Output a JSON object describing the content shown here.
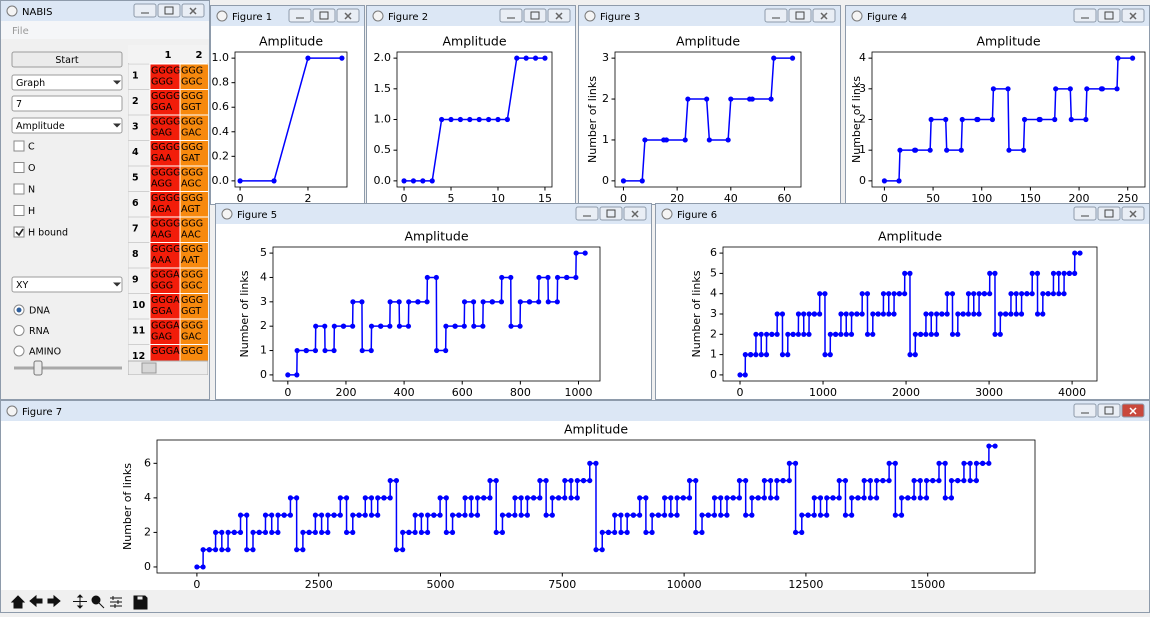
{
  "app": {
    "title": "NABIS",
    "menu": [
      "File"
    ],
    "start": "Start",
    "mode": "Graph",
    "number": "7",
    "measure": "Amplitude",
    "checkboxes": [
      {
        "label": "C",
        "checked": false
      },
      {
        "label": "O",
        "checked": false
      },
      {
        "label": "N",
        "checked": false
      },
      {
        "label": "H",
        "checked": false
      },
      {
        "label": "H bound",
        "checked": true
      }
    ],
    "plot": "XY",
    "radios": [
      {
        "label": "DNA",
        "selected": true
      },
      {
        "label": "RNA",
        "selected": false
      },
      {
        "label": "AMINO",
        "selected": false
      }
    ],
    "table": {
      "columns": [
        "1",
        "2"
      ],
      "rows": [
        {
          "label": "1",
          "cells": [
            [
              "GGGG",
              "GGG"
            ],
            [
              "GGG",
              "GGC"
            ]
          ]
        },
        {
          "label": "2",
          "cells": [
            [
              "GGGG",
              "GGA"
            ],
            [
              "GGG",
              "GGT"
            ]
          ]
        },
        {
          "label": "3",
          "cells": [
            [
              "GGGG",
              "GAG"
            ],
            [
              "GGG",
              "GAC"
            ]
          ]
        },
        {
          "label": "4",
          "cells": [
            [
              "GGGG",
              "GAA"
            ],
            [
              "GGG",
              "GAT"
            ]
          ]
        },
        {
          "label": "5",
          "cells": [
            [
              "GGGG",
              "AGG"
            ],
            [
              "GGG",
              "AGC"
            ]
          ]
        },
        {
          "label": "6",
          "cells": [
            [
              "GGGG",
              "AGA"
            ],
            [
              "GGG",
              "AGT"
            ]
          ]
        },
        {
          "label": "7",
          "cells": [
            [
              "GGGG",
              "AAG"
            ],
            [
              "GGG",
              "AAC"
            ]
          ]
        },
        {
          "label": "8",
          "cells": [
            [
              "GGGG",
              "AAA"
            ],
            [
              "GGG",
              "AAT"
            ]
          ]
        },
        {
          "label": "9",
          "cells": [
            [
              "GGGA",
              "GGG"
            ],
            [
              "GGG",
              "GGC"
            ]
          ]
        },
        {
          "label": "10",
          "cells": [
            [
              "GGGA",
              "GGA"
            ],
            [
              "GGG",
              "GGT"
            ]
          ]
        },
        {
          "label": "11",
          "cells": [
            [
              "GGGA",
              "GAG"
            ],
            [
              "GGG",
              "GAC"
            ]
          ]
        },
        {
          "label": "12",
          "cells": [
            [
              "GGGA"
            ],
            [
              "GGG"
            ]
          ]
        }
      ]
    }
  },
  "chart_data": [
    {
      "window": "Figure 1",
      "type": "line",
      "title": "Amplitude",
      "color": "#0000ff",
      "x": [
        0,
        1,
        2,
        3
      ],
      "values": [
        0,
        0,
        1,
        1
      ],
      "xlim": [
        -0.15,
        3.15
      ],
      "ylim": [
        -0.05,
        1.05
      ],
      "xticks": [
        0,
        2
      ],
      "yticks": [
        {
          "value": 0,
          "label": "0.0"
        },
        0.2,
        0.4,
        0.6,
        0.8,
        {
          "value": 1,
          "label": "1.0"
        }
      ]
    },
    {
      "window": "Figure 2",
      "type": "line",
      "title": "Amplitude",
      "color": "#0000ff",
      "x": [
        0,
        1,
        2,
        3,
        4,
        5,
        6,
        7,
        8,
        9,
        10,
        11,
        12,
        13,
        14,
        15
      ],
      "values": [
        0,
        0,
        0,
        0,
        1,
        1,
        1,
        1,
        1,
        1,
        1,
        1,
        2,
        2,
        2,
        2
      ],
      "xlim": [
        -0.75,
        15.75
      ],
      "ylim": [
        -0.1,
        2.1
      ],
      "xticks": [
        0,
        5,
        10,
        15
      ],
      "yticks": [
        {
          "value": 0,
          "label": "0.0"
        },
        0.5,
        {
          "value": 1,
          "label": "1.0"
        },
        1.5,
        {
          "value": 2,
          "label": "2.0"
        }
      ]
    },
    {
      "window": "Figure 3",
      "type": "line",
      "title": "Amplitude",
      "ylabel": "Number of links",
      "color": "#0000ff",
      "x": [
        0,
        7,
        8,
        15,
        16,
        23,
        24,
        31,
        32,
        39,
        40,
        47,
        48,
        55,
        56,
        63
      ],
      "values": [
        0,
        0,
        1,
        1,
        1,
        1,
        2,
        2,
        1,
        1,
        2,
        2,
        2,
        2,
        3,
        3
      ],
      "xlim": [
        -3.15,
        66.15
      ],
      "ylim": [
        -0.15,
        3.15
      ],
      "xticks": [
        0,
        20,
        40,
        60
      ],
      "yticks": [
        0,
        1,
        2,
        3
      ]
    },
    {
      "window": "Figure 4",
      "type": "line",
      "title": "Amplitude",
      "ylabel": "Number of links",
      "color": "#0000ff",
      "x": [
        0,
        15,
        16,
        31,
        32,
        47,
        48,
        63,
        64,
        79,
        80,
        95,
        96,
        111,
        112,
        127,
        128,
        143,
        144,
        159,
        160,
        175,
        176,
        191,
        192,
        207,
        208,
        223,
        224,
        239,
        240,
        255
      ],
      "values": [
        0,
        0,
        1,
        1,
        1,
        1,
        2,
        2,
        1,
        1,
        2,
        2,
        2,
        2,
        3,
        3,
        1,
        1,
        2,
        2,
        2,
        2,
        3,
        3,
        2,
        2,
        3,
        3,
        3,
        3,
        4,
        4
      ],
      "xlim": [
        -12.75,
        267.75
      ],
      "ylim": [
        -0.2,
        4.2
      ],
      "xticks": [
        0,
        50,
        100,
        150,
        200,
        250
      ],
      "yticks": [
        0,
        1,
        2,
        3,
        4
      ]
    },
    {
      "window": "Figure 5",
      "type": "line",
      "title": "Amplitude",
      "ylabel": "Number of links",
      "color": "#0000ff",
      "x": [
        0,
        31,
        32,
        63,
        64,
        95,
        96,
        127,
        128,
        159,
        160,
        191,
        192,
        223,
        224,
        255,
        256,
        287,
        288,
        319,
        320,
        351,
        352,
        383,
        384,
        415,
        416,
        447,
        448,
        479,
        480,
        511,
        512,
        543,
        544,
        575,
        576,
        607,
        608,
        639,
        640,
        671,
        672,
        703,
        704,
        735,
        736,
        767,
        768,
        799,
        800,
        831,
        832,
        863,
        864,
        895,
        896,
        927,
        928,
        959,
        960,
        991,
        992,
        1023
      ],
      "values": [
        0,
        0,
        1,
        1,
        1,
        1,
        2,
        2,
        1,
        1,
        2,
        2,
        2,
        2,
        3,
        3,
        1,
        1,
        2,
        2,
        2,
        2,
        3,
        3,
        2,
        2,
        3,
        3,
        3,
        3,
        4,
        4,
        1,
        1,
        2,
        2,
        2,
        2,
        3,
        3,
        2,
        2,
        3,
        3,
        3,
        3,
        4,
        4,
        2,
        2,
        3,
        3,
        3,
        3,
        4,
        4,
        3,
        3,
        4,
        4,
        4,
        4,
        5,
        5
      ],
      "xlim": [
        -51,
        1074
      ],
      "ylim": [
        -0.25,
        5.25
      ],
      "xticks": [
        0,
        200,
        400,
        600,
        800,
        1000
      ],
      "yticks": [
        0,
        1,
        2,
        3,
        4,
        5
      ]
    },
    {
      "window": "Figure 6",
      "type": "line",
      "title": "Amplitude",
      "ylabel": "Number of links",
      "color": "#0000ff",
      "x": [
        0,
        63,
        64,
        127,
        128,
        191,
        192,
        255,
        256,
        319,
        320,
        383,
        384,
        447,
        448,
        511,
        512,
        575,
        576,
        639,
        640,
        703,
        704,
        767,
        768,
        831,
        832,
        895,
        896,
        959,
        960,
        1023,
        1024,
        1087,
        1088,
        1151,
        1152,
        1215,
        1216,
        1279,
        1280,
        1343,
        1344,
        1407,
        1408,
        1471,
        1472,
        1535,
        1536,
        1599,
        1600,
        1663,
        1664,
        1727,
        1728,
        1791,
        1792,
        1855,
        1856,
        1919,
        1920,
        1983,
        1984,
        2047,
        2048,
        2111,
        2112,
        2175,
        2176,
        2239,
        2240,
        2303,
        2304,
        2367,
        2368,
        2431,
        2432,
        2495,
        2496,
        2559,
        2560,
        2623,
        2624,
        2687,
        2688,
        2751,
        2752,
        2815,
        2816,
        2879,
        2880,
        2943,
        2944,
        3007,
        3008,
        3071,
        3072,
        3135,
        3136,
        3199,
        3200,
        3263,
        3264,
        3327,
        3328,
        3391,
        3392,
        3455,
        3456,
        3519,
        3520,
        3583,
        3584,
        3647,
        3648,
        3711,
        3712,
        3775,
        3776,
        3839,
        3840,
        3903,
        3904,
        3967,
        3968,
        4031,
        4032,
        4095
      ],
      "values": [
        0,
        0,
        1,
        1,
        1,
        1,
        2,
        2,
        1,
        1,
        2,
        2,
        2,
        2,
        3,
        3,
        1,
        1,
        2,
        2,
        2,
        2,
        3,
        3,
        2,
        2,
        3,
        3,
        3,
        3,
        4,
        4,
        1,
        1,
        2,
        2,
        2,
        2,
        3,
        3,
        2,
        2,
        3,
        3,
        3,
        3,
        4,
        4,
        2,
        2,
        3,
        3,
        3,
        3,
        4,
        4,
        3,
        3,
        4,
        4,
        4,
        4,
        5,
        5,
        1,
        1,
        2,
        2,
        2,
        2,
        3,
        3,
        2,
        2,
        3,
        3,
        3,
        3,
        4,
        4,
        2,
        2,
        3,
        3,
        3,
        3,
        4,
        4,
        3,
        3,
        4,
        4,
        4,
        4,
        5,
        5,
        2,
        2,
        3,
        3,
        3,
        3,
        4,
        4,
        3,
        3,
        4,
        4,
        4,
        4,
        5,
        5,
        3,
        3,
        4,
        4,
        4,
        4,
        5,
        5,
        4,
        4,
        5,
        5,
        5,
        5,
        6,
        6
      ],
      "xlim": [
        -205,
        4300
      ],
      "ylim": [
        -0.3,
        6.3
      ],
      "xticks": [
        0,
        1000,
        2000,
        3000,
        4000
      ],
      "yticks": [
        0,
        1,
        2,
        3,
        4,
        5,
        6
      ]
    },
    {
      "window": "Figure 7",
      "type": "line",
      "title": "Amplitude",
      "ylabel": "Number of links",
      "color": "#0000ff",
      "x": [
        0,
        127,
        128,
        255,
        256,
        383,
        384,
        511,
        512,
        639,
        640,
        767,
        768,
        895,
        896,
        1023,
        1024,
        1151,
        1152,
        1279,
        1280,
        1407,
        1408,
        1535,
        1536,
        1663,
        1664,
        1791,
        1792,
        1919,
        1920,
        2047,
        2048,
        2175,
        2176,
        2303,
        2304,
        2431,
        2432,
        2559,
        2560,
        2687,
        2688,
        2815,
        2816,
        2943,
        2944,
        3071,
        3072,
        3199,
        3200,
        3327,
        3328,
        3455,
        3456,
        3583,
        3584,
        3711,
        3712,
        3839,
        3840,
        3967,
        3968,
        4095,
        4096,
        4223,
        4224,
        4351,
        4352,
        4479,
        4480,
        4607,
        4608,
        4735,
        4736,
        4863,
        4864,
        4991,
        4992,
        5119,
        5120,
        5247,
        5248,
        5375,
        5376,
        5503,
        5504,
        5631,
        5632,
        5759,
        5760,
        5887,
        5888,
        6015,
        6016,
        6143,
        6144,
        6271,
        6272,
        6399,
        6400,
        6527,
        6528,
        6655,
        6656,
        6783,
        6784,
        6911,
        6912,
        7039,
        7040,
        7167,
        7168,
        7295,
        7296,
        7423,
        7424,
        7551,
        7552,
        7679,
        7680,
        7807,
        7808,
        7935,
        7936,
        8063,
        8064,
        8191,
        8192,
        8319,
        8320,
        8447,
        8448,
        8575,
        8576,
        8703,
        8704,
        8831,
        8832,
        8959,
        8960,
        9087,
        9088,
        9215,
        9216,
        9343,
        9344,
        9471,
        9472,
        9599,
        9600,
        9727,
        9728,
        9855,
        9856,
        9983,
        9984,
        10111,
        10112,
        10239,
        10240,
        10367,
        10368,
        10495,
        10496,
        10623,
        10624,
        10751,
        10752,
        10879,
        10880,
        11007,
        11008,
        11135,
        11136,
        11263,
        11264,
        11391,
        11392,
        11519,
        11520,
        11647,
        11648,
        11775,
        11776,
        11903,
        11904,
        12031,
        12032,
        12159,
        12160,
        12287,
        12288,
        12415,
        12416,
        12543,
        12544,
        12671,
        12672,
        12799,
        12800,
        12927,
        12928,
        13055,
        13056,
        13183,
        13184,
        13311,
        13312,
        13439,
        13440,
        13567,
        13568,
        13695,
        13696,
        13823,
        13824,
        13951,
        13952,
        14079,
        14080,
        14207,
        14208,
        14335,
        14336,
        14463,
        14464,
        14591,
        14592,
        14719,
        14720,
        14847,
        14848,
        14975,
        14976,
        15103,
        15104,
        15231,
        15232,
        15359,
        15360,
        15487,
        15488,
        15615,
        15616,
        15743,
        15744,
        15871,
        15872,
        15999,
        16000,
        16127,
        16128,
        16255,
        16256,
        16383
      ],
      "values": [
        0,
        0,
        1,
        1,
        1,
        1,
        2,
        2,
        1,
        1,
        2,
        2,
        2,
        2,
        3,
        3,
        1,
        1,
        2,
        2,
        2,
        2,
        3,
        3,
        2,
        2,
        3,
        3,
        3,
        3,
        4,
        4,
        1,
        1,
        2,
        2,
        2,
        2,
        3,
        3,
        2,
        2,
        3,
        3,
        3,
        3,
        4,
        4,
        2,
        2,
        3,
        3,
        3,
        3,
        4,
        4,
        3,
        3,
        4,
        4,
        4,
        4,
        5,
        5,
        1,
        1,
        2,
        2,
        2,
        2,
        3,
        3,
        2,
        2,
        3,
        3,
        3,
        3,
        4,
        4,
        2,
        2,
        3,
        3,
        3,
        3,
        4,
        4,
        3,
        3,
        4,
        4,
        4,
        4,
        5,
        5,
        2,
        2,
        3,
        3,
        3,
        3,
        4,
        4,
        3,
        3,
        4,
        4,
        4,
        4,
        5,
        5,
        3,
        3,
        4,
        4,
        4,
        4,
        5,
        5,
        4,
        4,
        5,
        5,
        5,
        5,
        6,
        6,
        1,
        1,
        2,
        2,
        2,
        2,
        3,
        3,
        2,
        2,
        3,
        3,
        3,
        3,
        4,
        4,
        2,
        2,
        3,
        3,
        3,
        3,
        4,
        4,
        3,
        3,
        4,
        4,
        4,
        4,
        5,
        5,
        2,
        2,
        3,
        3,
        3,
        3,
        4,
        4,
        3,
        3,
        4,
        4,
        4,
        4,
        5,
        5,
        3,
        3,
        4,
        4,
        4,
        4,
        5,
        5,
        4,
        4,
        5,
        5,
        5,
        5,
        6,
        6,
        2,
        2,
        3,
        3,
        3,
        3,
        4,
        4,
        3,
        3,
        4,
        4,
        4,
        4,
        5,
        5,
        3,
        3,
        4,
        4,
        4,
        4,
        5,
        5,
        4,
        4,
        5,
        5,
        5,
        5,
        6,
        6,
        3,
        3,
        4,
        4,
        4,
        4,
        5,
        5,
        4,
        4,
        5,
        5,
        5,
        5,
        6,
        6,
        4,
        4,
        5,
        5,
        5,
        5,
        6,
        6,
        5,
        5,
        6,
        6,
        6,
        6,
        7,
        7
      ],
      "xlim": [
        -819,
        17202
      ],
      "ylim": [
        -0.35,
        7.35
      ],
      "xticks": [
        0,
        2500,
        5000,
        7500,
        10000,
        12500,
        15000
      ],
      "yticks": [
        0,
        2,
        4,
        6
      ]
    }
  ]
}
